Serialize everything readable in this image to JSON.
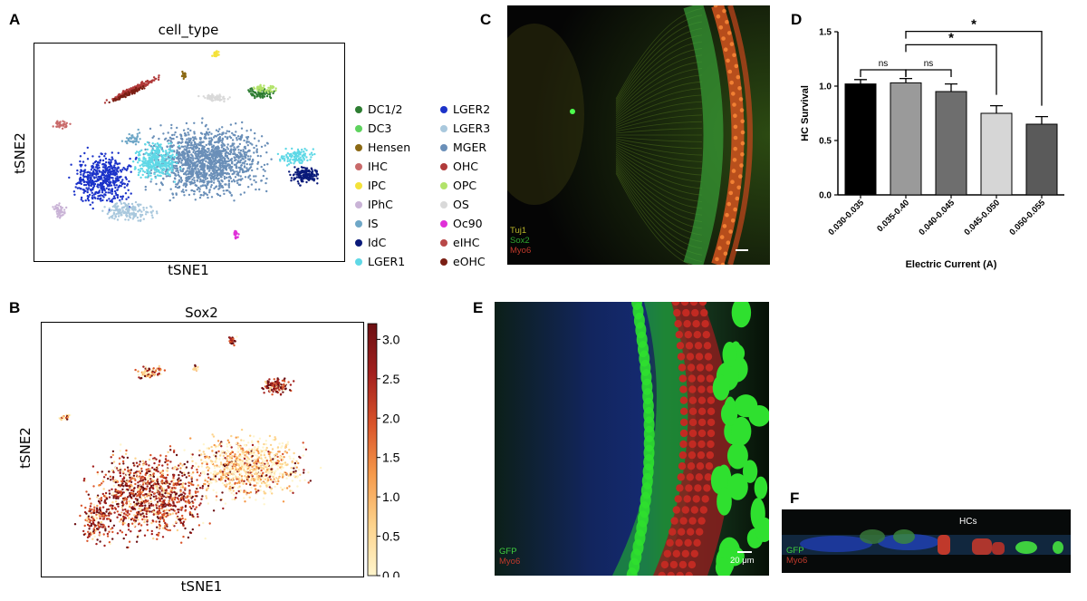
{
  "panels": {
    "A": {
      "letter": "A",
      "title": "cell_type",
      "xlabel": "tSNE1",
      "ylabel": "tSNE2"
    },
    "B": {
      "letter": "B",
      "title": "Sox2",
      "xlabel": "tSNE1",
      "ylabel": "tSNE2"
    },
    "C": {
      "letter": "C",
      "stain_labels": [
        "Tuj1",
        "Sox2",
        "Myo6"
      ],
      "stain_colors": [
        "#b9b52a",
        "#2fa52f",
        "#c0392b"
      ]
    },
    "D": {
      "letter": "D"
    },
    "E": {
      "letter": "E",
      "stain_labels": [
        "GFP",
        "Myo6"
      ],
      "stain_colors": [
        "#3fcf3f",
        "#c0392b"
      ],
      "scale_bar": "20 μm"
    },
    "F": {
      "letter": "F",
      "stain_labels": [
        "GFP",
        "Myo6"
      ],
      "stain_colors": [
        "#3fcf3f",
        "#c0392b"
      ],
      "annotation": "HCs"
    }
  },
  "legend": [
    {
      "label": "DC1/2",
      "color": "#2e7d32"
    },
    {
      "label": "DC3",
      "color": "#5ed35e"
    },
    {
      "label": "Hensen",
      "color": "#8b6914"
    },
    {
      "label": "IHC",
      "color": "#c96a6a"
    },
    {
      "label": "IPC",
      "color": "#f4e23a"
    },
    {
      "label": "IPhC",
      "color": "#c9b3d6"
    },
    {
      "label": "IS",
      "color": "#6fa7c7"
    },
    {
      "label": "IdC",
      "color": "#0a1a7a"
    },
    {
      "label": "LGER1",
      "color": "#5fd8e6"
    },
    {
      "label": "LGER2",
      "color": "#1c33c9"
    },
    {
      "label": "LGER3",
      "color": "#a9c8dd"
    },
    {
      "label": "MGER",
      "color": "#6a8fb8"
    },
    {
      "label": "OHC",
      "color": "#b03a3a"
    },
    {
      "label": "OPC",
      "color": "#b2e36a"
    },
    {
      "label": "OS",
      "color": "#d9d9d9"
    },
    {
      "label": "Oc90",
      "color": "#e030d8"
    },
    {
      "label": "eIHC",
      "color": "#b84848"
    },
    {
      "label": "eOHC",
      "color": "#7a1f14"
    }
  ],
  "colorbar": {
    "ticks": [
      "3.0",
      "2.5",
      "2.0",
      "1.5",
      "1.0",
      "0.5",
      "0.0"
    ],
    "min": 0,
    "max": 3.2,
    "colors": [
      "#fff5cc",
      "#fdd38c",
      "#f59a4b",
      "#d9542a",
      "#a3201e",
      "#6b0f12"
    ]
  },
  "chart_data": {
    "type": "bar",
    "categories": [
      "0.030-0.035",
      "0.035-0.40",
      "0.040-0.045",
      "0.045-0.050",
      "0.050-0.055"
    ],
    "values": [
      1.02,
      1.03,
      0.95,
      0.75,
      0.65
    ],
    "errors": [
      0.04,
      0.04,
      0.07,
      0.07,
      0.07
    ],
    "colors": [
      "#000000",
      "#9a9a9a",
      "#6e6e6e",
      "#d6d6d6",
      "#5a5a5a"
    ],
    "xlabel": "Electric Current (A)",
    "ylabel": "HC Survival",
    "ylim": [
      0,
      1.5
    ],
    "yticks": [
      "0.0",
      "0.5",
      "1.0",
      "1.5"
    ],
    "significance": [
      {
        "from": 0,
        "to": 1,
        "label": "ns"
      },
      {
        "from": 1,
        "to": 2,
        "label": "ns"
      },
      {
        "from": 1,
        "to": 3,
        "label": "*"
      },
      {
        "from": 1,
        "to": 4,
        "label": "*"
      }
    ]
  }
}
